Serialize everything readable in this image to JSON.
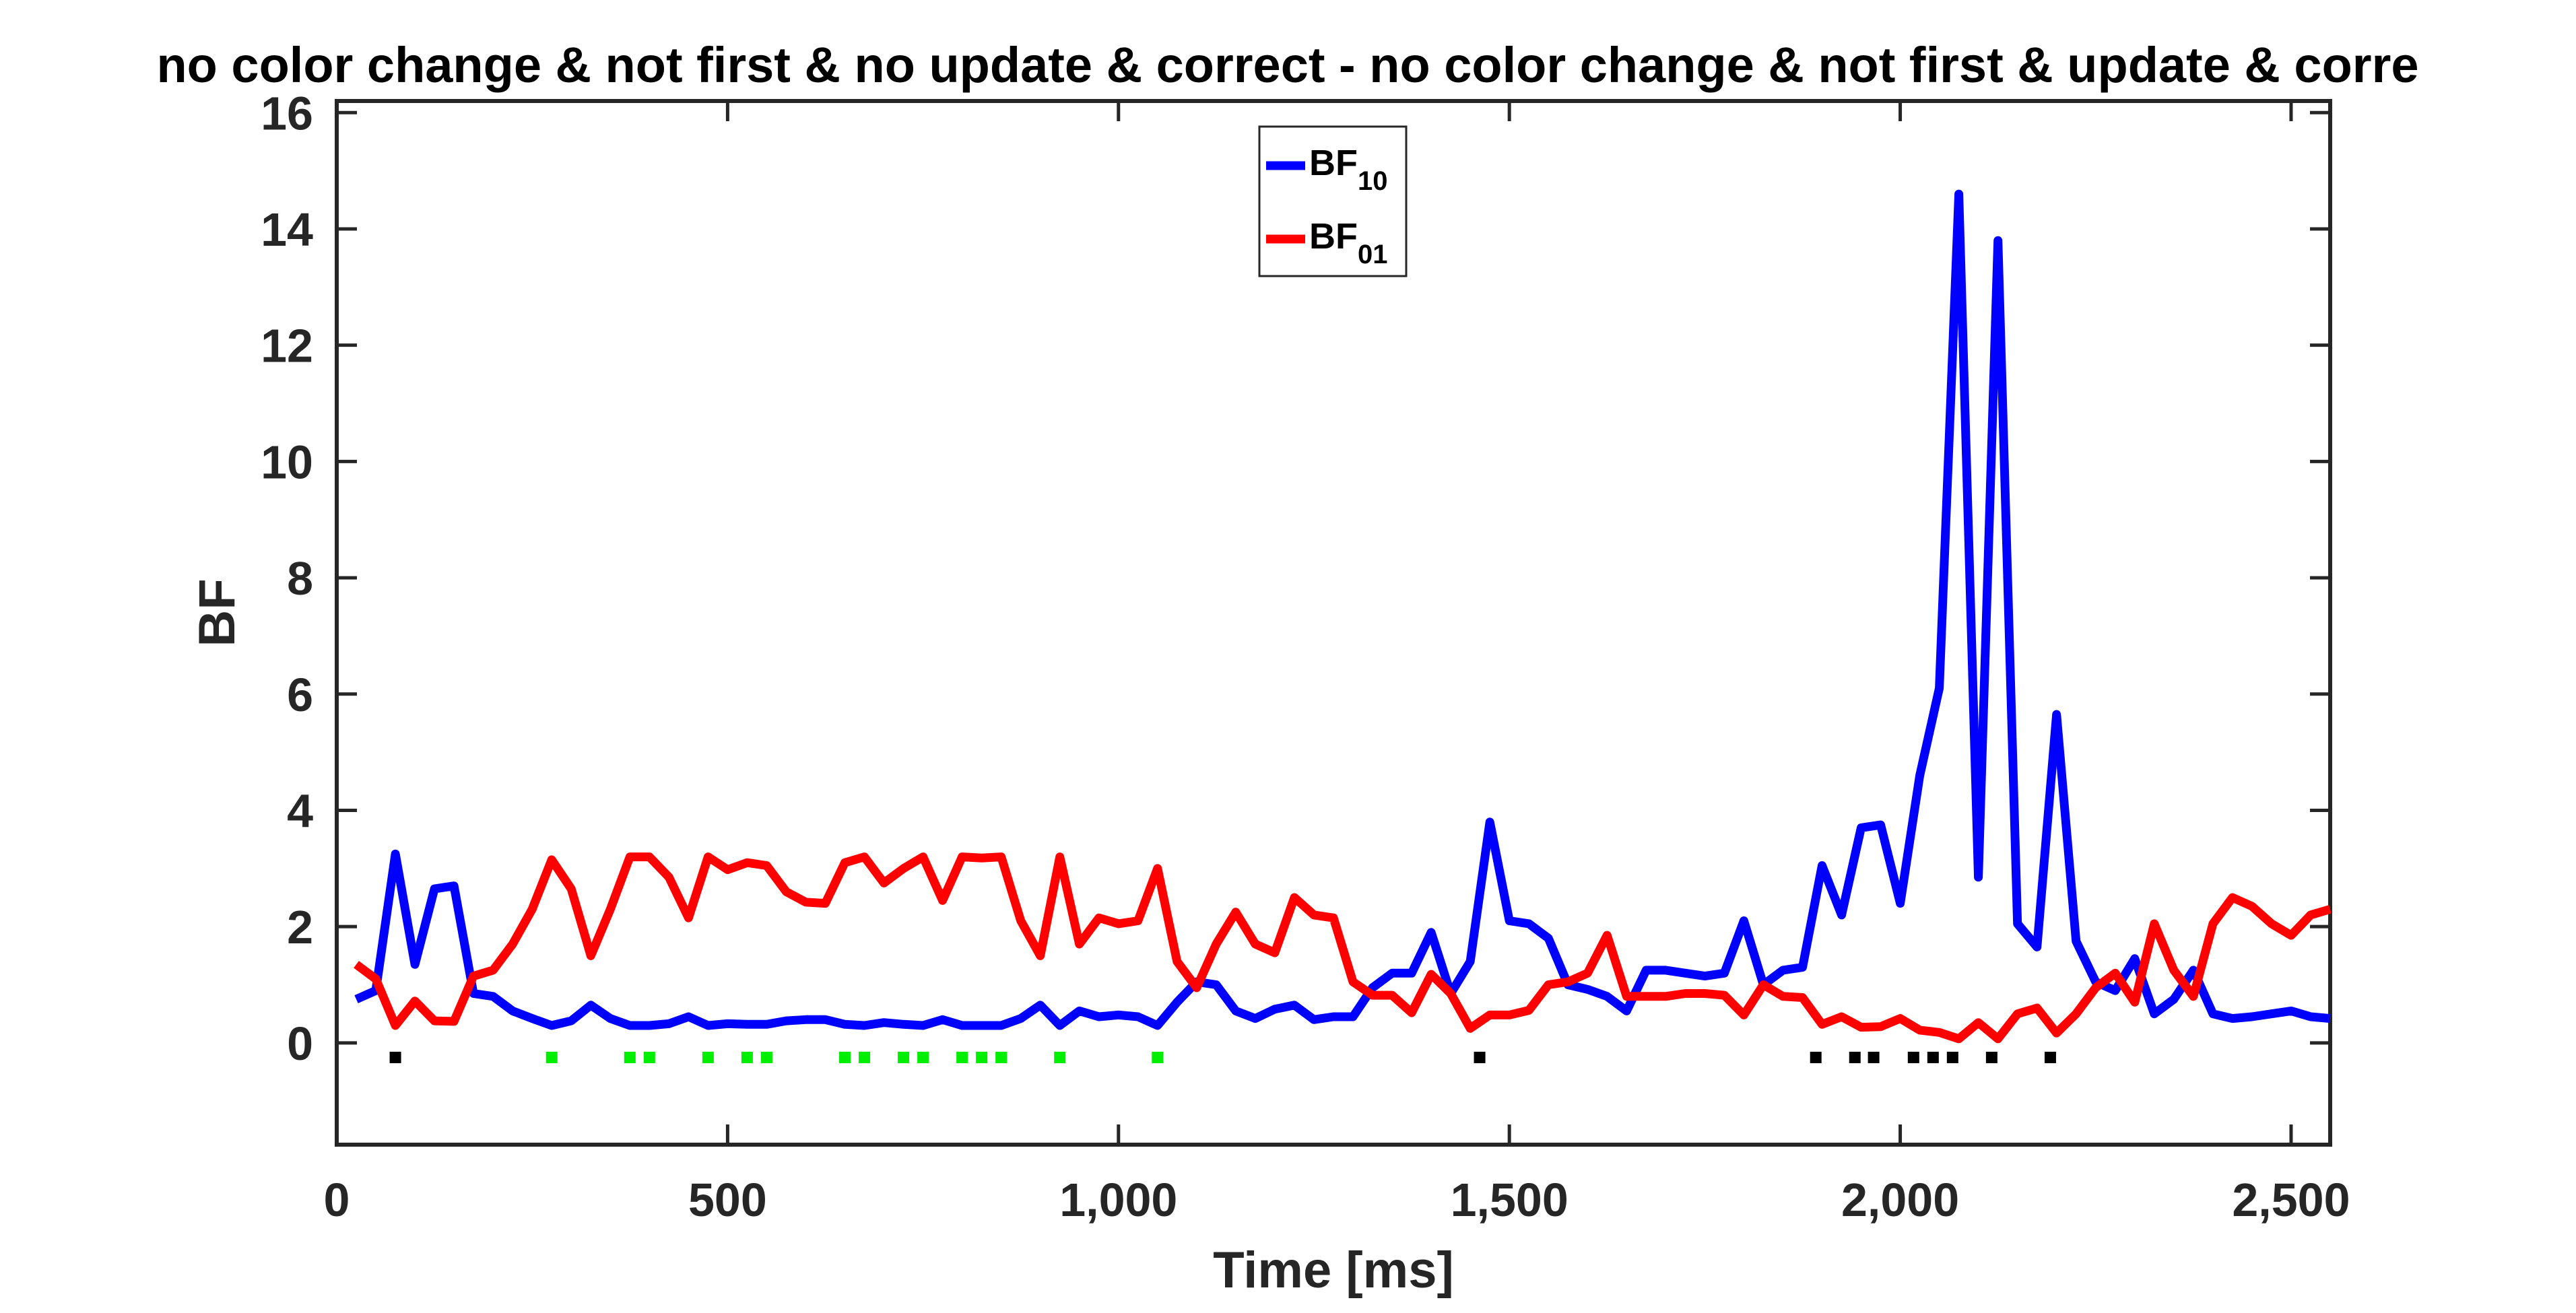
{
  "chart_data": {
    "type": "line",
    "title": "no color change & not first & no update & correct - no color change & not first & update & corre",
    "xlabel": "Time [ms]",
    "ylabel": "BF",
    "xlim": [
      0,
      2550
    ],
    "ylim": [
      -1.75,
      16.2
    ],
    "xticks": [
      0,
      500,
      1000,
      1500,
      2000,
      2500
    ],
    "xtick_labels": [
      "0",
      "500",
      "1,000",
      "1,500",
      "2,000",
      "2,500"
    ],
    "yticks": [
      0,
      2,
      4,
      6,
      8,
      10,
      12,
      14,
      16
    ],
    "ytick_labels": [
      "0",
      "2",
      "4",
      "6",
      "8",
      "10",
      "12",
      "14",
      "16"
    ],
    "grid": false,
    "legend_position": "top-center",
    "legend": {
      "bf10": {
        "main": "BF",
        "sub": "10"
      },
      "bf01": {
        "main": "BF",
        "sub": "01"
      }
    },
    "colors": {
      "bf10": "#0000ff",
      "bf01": "#ff0000",
      "sig_black": "#000000",
      "sig_green": "#00ee00"
    },
    "x": [
      25,
      50,
      75,
      100,
      125,
      150,
      175,
      200,
      225,
      250,
      275,
      300,
      325,
      350,
      375,
      400,
      425,
      450,
      475,
      500,
      525,
      550,
      575,
      600,
      625,
      650,
      675,
      700,
      725,
      750,
      775,
      800,
      825,
      850,
      875,
      900,
      925,
      950,
      975,
      1000,
      1025,
      1050,
      1075,
      1100,
      1125,
      1150,
      1175,
      1200,
      1225,
      1250,
      1275,
      1300,
      1325,
      1350,
      1375,
      1400,
      1425,
      1450,
      1475,
      1500,
      1525,
      1550,
      1575,
      1600,
      1625,
      1650,
      1675,
      1700,
      1725,
      1750,
      1775,
      1800,
      1825,
      1850,
      1875,
      1900,
      1925,
      1950,
      1975,
      2000,
      2025,
      2050,
      2075,
      2100,
      2125,
      2150,
      2175,
      2200,
      2225,
      2250,
      2275,
      2300,
      2325,
      2350,
      2375,
      2400,
      2425,
      2450,
      2475,
      2500,
      2525,
      2550
    ],
    "series": [
      {
        "name": "BF10",
        "values": [
          0.75,
          0.9,
          3.25,
          1.35,
          2.65,
          2.7,
          0.85,
          0.8,
          0.55,
          0.42,
          0.3,
          0.38,
          0.65,
          0.42,
          0.3,
          0.3,
          0.33,
          0.45,
          0.3,
          0.33,
          0.32,
          0.32,
          0.38,
          0.4,
          0.4,
          0.32,
          0.3,
          0.35,
          0.32,
          0.3,
          0.4,
          0.3,
          0.3,
          0.3,
          0.42,
          0.65,
          0.3,
          0.55,
          0.45,
          0.48,
          0.45,
          0.3,
          0.7,
          1.05,
          1.0,
          0.55,
          0.42,
          0.58,
          0.65,
          0.4,
          0.45,
          0.45,
          0.95,
          1.2,
          1.2,
          1.9,
          0.85,
          1.4,
          3.8,
          2.1,
          2.05,
          1.8,
          1.0,
          0.92,
          0.8,
          0.55,
          1.25,
          1.25,
          1.2,
          1.15,
          1.2,
          2.1,
          1.0,
          1.25,
          1.3,
          3.05,
          2.2,
          3.7,
          3.75,
          2.4,
          4.6,
          6.1,
          14.6,
          2.85,
          13.8,
          2.05,
          1.65,
          5.65,
          1.75,
          1.05,
          0.9,
          1.45,
          0.5,
          0.75,
          1.25,
          0.5,
          0.42,
          0.45,
          0.5,
          0.55,
          0.45,
          0.42
        ]
      },
      {
        "name": "BF01",
        "values": [
          1.35,
          1.1,
          0.3,
          0.72,
          0.38,
          0.37,
          1.15,
          1.25,
          1.7,
          2.3,
          3.15,
          2.65,
          1.5,
          2.3,
          3.2,
          3.2,
          2.85,
          2.15,
          3.2,
          2.98,
          3.1,
          3.05,
          2.6,
          2.42,
          2.4,
          3.1,
          3.2,
          2.75,
          3.0,
          3.2,
          2.45,
          3.2,
          3.18,
          3.2,
          2.1,
          1.5,
          3.2,
          1.7,
          2.15,
          2.05,
          2.1,
          3.0,
          1.4,
          0.95,
          1.7,
          2.25,
          1.7,
          1.55,
          2.5,
          2.2,
          2.15,
          1.05,
          0.82,
          0.82,
          0.52,
          1.18,
          0.85,
          0.25,
          0.48,
          0.48,
          0.56,
          1.0,
          1.05,
          1.2,
          1.85,
          0.8,
          0.8,
          0.8,
          0.85,
          0.85,
          0.82,
          0.48,
          1.0,
          0.8,
          0.78,
          0.32,
          0.45,
          0.27,
          0.28,
          0.42,
          0.22,
          0.18,
          0.07,
          0.35,
          0.07,
          0.5,
          0.6,
          0.17,
          0.5,
          0.95,
          1.2,
          0.7,
          2.05,
          1.25,
          0.8,
          2.05,
          2.5,
          2.35,
          2.05,
          1.85,
          2.2,
          2.3
        ]
      }
    ],
    "significance_markers": {
      "y": -0.25,
      "black_x": [
        75,
        1462,
        1892,
        1942,
        1966,
        2017,
        2042,
        2067,
        2117,
        2192
      ],
      "green_x": [
        275,
        375,
        400,
        475,
        525,
        550,
        650,
        675,
        725,
        750,
        800,
        825,
        850,
        925,
        1050
      ]
    }
  }
}
